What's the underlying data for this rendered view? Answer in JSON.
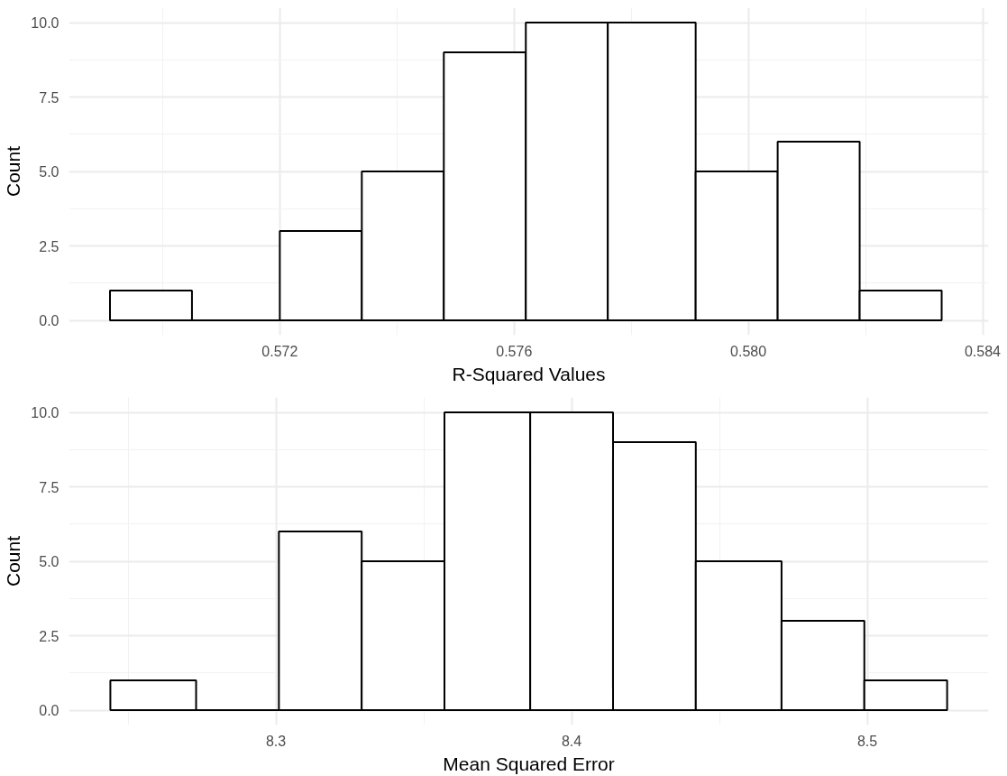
{
  "chart_data": [
    {
      "type": "histogram",
      "xlabel": "R-Squared Values",
      "ylabel": "Count",
      "bins": [
        0.5691,
        0.5705,
        0.572,
        0.5734,
        0.5748,
        0.5762,
        0.5776,
        0.5791,
        0.5805,
        0.5819,
        0.5833
      ],
      "values": [
        1,
        0,
        3,
        5,
        9,
        10,
        10,
        5,
        6,
        1
      ],
      "xlim": [
        0.5684,
        0.5841
      ],
      "xticks": [
        0.572,
        0.576,
        {
          "value": 0.58,
          "label": "0.580"
        },
        0.584
      ],
      "ylim": [
        -0.5,
        10.5
      ],
      "yticks": [
        {
          "value": 0,
          "label": "0.0"
        },
        {
          "value": 2.5,
          "label": "2.5"
        },
        {
          "value": 5,
          "label": "5.0"
        },
        {
          "value": 7.5,
          "label": "7.5"
        },
        {
          "value": 10,
          "label": "10.0"
        }
      ],
      "grid": true
    },
    {
      "type": "histogram",
      "xlabel": "Mean Squared Error",
      "ylabel": "Count",
      "bins": [
        8.244,
        8.273,
        8.301,
        8.329,
        8.357,
        8.386,
        8.414,
        8.442,
        8.471,
        8.499,
        8.527
      ],
      "values": [
        1,
        0,
        6,
        5,
        10,
        10,
        9,
        5,
        3,
        1
      ],
      "xlim": [
        8.23,
        8.541
      ],
      "xticks": [
        8.3,
        8.4,
        8.5
      ],
      "ylim": [
        -0.5,
        10.5
      ],
      "yticks": [
        {
          "value": 0,
          "label": "0.0"
        },
        {
          "value": 2.5,
          "label": "2.5"
        },
        {
          "value": 5,
          "label": "5.0"
        },
        {
          "value": 7.5,
          "label": "7.5"
        },
        {
          "value": 10,
          "label": "10.0"
        }
      ],
      "grid": true
    }
  ]
}
